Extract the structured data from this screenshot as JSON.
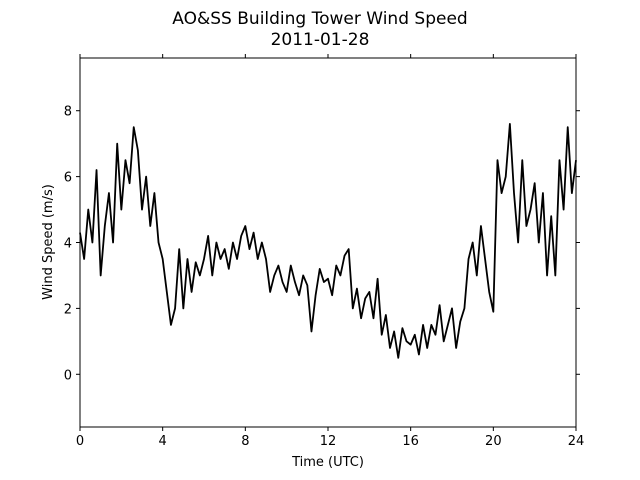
{
  "chart_data": {
    "type": "line",
    "title": "AO&SS Building Tower Wind Speed",
    "subtitle": "2011-01-28",
    "x_label": "Time (UTC)",
    "y_label": "Wind Speed (m/s)",
    "x": [
      0,
      0.2,
      0.4,
      0.6,
      0.8,
      1,
      1.2,
      1.4,
      1.6,
      1.8,
      2,
      2.2,
      2.4,
      2.6,
      2.8,
      3,
      3.2,
      3.4,
      3.6,
      3.8,
      4,
      4.2,
      4.4,
      4.6,
      4.8,
      5,
      5.2,
      5.4,
      5.6,
      5.8,
      6,
      6.2,
      6.4,
      6.6,
      6.8,
      7,
      7.2,
      7.4,
      7.6,
      7.8,
      8,
      8.2,
      8.4,
      8.6,
      8.8,
      9,
      9.2,
      9.4,
      9.6,
      9.8,
      10,
      10.2,
      10.4,
      10.6,
      10.8,
      11,
      11.2,
      11.4,
      11.6,
      11.8,
      12,
      12.2,
      12.4,
      12.6,
      12.8,
      13,
      13.2,
      13.4,
      13.6,
      13.8,
      14,
      14.2,
      14.4,
      14.6,
      14.8,
      15,
      15.2,
      15.4,
      15.6,
      15.8,
      16,
      16.2,
      16.4,
      16.6,
      16.8,
      17,
      17.2,
      17.4,
      17.6,
      17.8,
      18,
      18.2,
      18.4,
      18.6,
      18.8,
      19,
      19.2,
      19.4,
      19.6,
      19.8,
      20,
      20.2,
      20.4,
      20.6,
      20.8,
      21,
      21.2,
      21.4,
      21.6,
      21.8,
      22,
      22.2,
      22.4,
      22.6,
      22.8,
      23,
      23.2,
      23.4,
      23.6,
      23.8,
      24
    ],
    "series": [
      {
        "name": "Wind Speed",
        "color": "#000000",
        "values": [
          4.3,
          3.5,
          5.0,
          4.0,
          6.2,
          3.0,
          4.5,
          5.5,
          4.0,
          7.0,
          5.0,
          6.5,
          5.8,
          7.5,
          6.8,
          5.0,
          6.0,
          4.5,
          5.5,
          4.0,
          3.5,
          2.5,
          1.5,
          2.0,
          3.8,
          2.0,
          3.5,
          2.5,
          3.4,
          3.0,
          3.5,
          4.2,
          3.0,
          4.0,
          3.5,
          3.8,
          3.2,
          4.0,
          3.5,
          4.2,
          4.5,
          3.8,
          4.3,
          3.5,
          4.0,
          3.5,
          2.5,
          3.0,
          3.3,
          2.8,
          2.5,
          3.3,
          2.8,
          2.4,
          3.0,
          2.7,
          1.3,
          2.4,
          3.2,
          2.8,
          2.9,
          2.4,
          3.3,
          3.0,
          3.6,
          3.8,
          2.0,
          2.6,
          1.7,
          2.3,
          2.5,
          1.7,
          2.9,
          1.2,
          1.8,
          0.8,
          1.3,
          0.5,
          1.4,
          1.0,
          0.9,
          1.2,
          0.6,
          1.5,
          0.8,
          1.5,
          1.2,
          2.1,
          1.0,
          1.5,
          2.0,
          0.8,
          1.6,
          2.0,
          3.5,
          4.0,
          3.0,
          4.5,
          3.5,
          2.5,
          1.9,
          6.5,
          5.5,
          6.0,
          7.6,
          5.5,
          4.0,
          6.5,
          4.5,
          5.0,
          5.8,
          4.0,
          5.5,
          3.0,
          4.8,
          3.0,
          6.5,
          5.0,
          7.5,
          5.5,
          6.5
        ]
      }
    ],
    "xlim": [
      0,
      24
    ],
    "xticks": [
      0,
      4,
      8,
      12,
      16,
      20,
      24
    ],
    "ylim": [
      -1.6,
      9.6
    ],
    "yticks": [
      0,
      2,
      4,
      6,
      8
    ],
    "grid": false
  }
}
